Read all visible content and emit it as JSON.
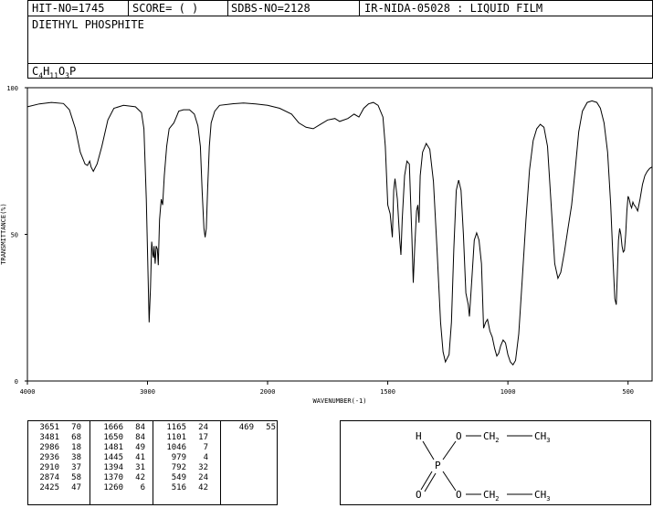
{
  "header": {
    "hit_no": "HIT-NO=1745",
    "score": "SCORE=  (  )",
    "sdbs_no": "SDBS-NO=2128",
    "method": "IR-NIDA-05028 : LIQUID FILM"
  },
  "compound": {
    "name": "DIETHYL PHOSPHITE",
    "formula_parts": [
      "C",
      "4",
      "H",
      "11",
      "O",
      "3",
      "P"
    ]
  },
  "chart_data": {
    "type": "line",
    "xlabel": "WAVENUMBER(-1)",
    "ylabel": "TRANSMITTANCE(%)",
    "xlim": [
      4000,
      400
    ],
    "ylim": [
      0,
      100
    ],
    "x_ticks": [
      "4000",
      "3000",
      "2000",
      "1500",
      "1000",
      "500"
    ],
    "y_ticks": [
      "100",
      "50",
      "0"
    ],
    "series": [
      {
        "points": [
          [
            4000,
            93.5
          ],
          [
            3900,
            94.5
          ],
          [
            3800,
            95.0
          ],
          [
            3700,
            94.6
          ],
          [
            3650,
            92.5
          ],
          [
            3600,
            86.0
          ],
          [
            3560,
            78.0
          ],
          [
            3520,
            74.0
          ],
          [
            3500,
            73.5
          ],
          [
            3481,
            75.0
          ],
          [
            3470,
            73.0
          ],
          [
            3451,
            71.5
          ],
          [
            3420,
            74.0
          ],
          [
            3380,
            80.0
          ],
          [
            3330,
            89.0
          ],
          [
            3280,
            93.0
          ],
          [
            3200,
            94.0
          ],
          [
            3100,
            93.5
          ],
          [
            3050,
            91.5
          ],
          [
            3030,
            86.0
          ],
          [
            3010,
            62.0
          ],
          [
            2995,
            35.0
          ],
          [
            2986,
            20.0
          ],
          [
            2975,
            32.0
          ],
          [
            2965,
            47.5
          ],
          [
            2955,
            43.0
          ],
          [
            2950,
            42.0
          ],
          [
            2945,
            46.0
          ],
          [
            2936,
            40.0
          ],
          [
            2928,
            46.0
          ],
          [
            2918,
            45.0
          ],
          [
            2910,
            39.5
          ],
          [
            2900,
            55.0
          ],
          [
            2890,
            60.0
          ],
          [
            2885,
            62.0
          ],
          [
            2874,
            60.0
          ],
          [
            2860,
            70.0
          ],
          [
            2840,
            80.0
          ],
          [
            2820,
            86.0
          ],
          [
            2780,
            88.0
          ],
          [
            2760,
            90.0
          ],
          [
            2740,
            92.0
          ],
          [
            2700,
            92.5
          ],
          [
            2650,
            92.5
          ],
          [
            2610,
            91.0
          ],
          [
            2580,
            87.0
          ],
          [
            2560,
            80.0
          ],
          [
            2545,
            65.0
          ],
          [
            2530,
            52.0
          ],
          [
            2520,
            49.0
          ],
          [
            2510,
            52.0
          ],
          [
            2500,
            65.0
          ],
          [
            2485,
            80.0
          ],
          [
            2470,
            88.0
          ],
          [
            2440,
            92.0
          ],
          [
            2400,
            94.0
          ],
          [
            2300,
            94.5
          ],
          [
            2200,
            94.8
          ],
          [
            2100,
            94.5
          ],
          [
            2000,
            94.0
          ],
          [
            1950,
            93.0
          ],
          [
            1900,
            91.0
          ],
          [
            1870,
            88.0
          ],
          [
            1840,
            86.5
          ],
          [
            1810,
            86.0
          ],
          [
            1780,
            87.5
          ],
          [
            1750,
            89.0
          ],
          [
            1720,
            89.5
          ],
          [
            1700,
            88.5
          ],
          [
            1666,
            89.5
          ],
          [
            1640,
            91.0
          ],
          [
            1620,
            90.0
          ],
          [
            1600,
            93.0
          ],
          [
            1580,
            94.5
          ],
          [
            1560,
            95.0
          ],
          [
            1540,
            94.0
          ],
          [
            1520,
            90.0
          ],
          [
            1510,
            80.0
          ],
          [
            1500,
            60.0
          ],
          [
            1490,
            57.0
          ],
          [
            1481,
            49.0
          ],
          [
            1475,
            65.0
          ],
          [
            1470,
            69.0
          ],
          [
            1460,
            62.0
          ],
          [
            1450,
            48.0
          ],
          [
            1445,
            43.0
          ],
          [
            1440,
            55.0
          ],
          [
            1430,
            70.0
          ],
          [
            1420,
            75.0
          ],
          [
            1410,
            74.0
          ],
          [
            1400,
            50.0
          ],
          [
            1394,
            33.5
          ],
          [
            1388,
            45.0
          ],
          [
            1380,
            58.0
          ],
          [
            1375,
            60.0
          ],
          [
            1370,
            54.0
          ],
          [
            1365,
            70.0
          ],
          [
            1355,
            78.0
          ],
          [
            1340,
            81.0
          ],
          [
            1325,
            79.0
          ],
          [
            1310,
            68.0
          ],
          [
            1295,
            45.0
          ],
          [
            1280,
            20.0
          ],
          [
            1270,
            10.0
          ],
          [
            1260,
            6.5
          ],
          [
            1245,
            9.0
          ],
          [
            1235,
            20.0
          ],
          [
            1225,
            45.0
          ],
          [
            1215,
            65.0
          ],
          [
            1205,
            68.5
          ],
          [
            1195,
            65.0
          ],
          [
            1185,
            50.0
          ],
          [
            1175,
            30.0
          ],
          [
            1165,
            26.0
          ],
          [
            1160,
            22.0
          ],
          [
            1150,
            35.0
          ],
          [
            1140,
            48.0
          ],
          [
            1130,
            50.5
          ],
          [
            1120,
            48.0
          ],
          [
            1110,
            40.0
          ],
          [
            1101,
            18.0
          ],
          [
            1093,
            20.0
          ],
          [
            1085,
            21.0
          ],
          [
            1075,
            17.0
          ],
          [
            1065,
            15.0
          ],
          [
            1055,
            11.0
          ],
          [
            1046,
            8.5
          ],
          [
            1038,
            9.5
          ],
          [
            1030,
            12.0
          ],
          [
            1020,
            14.0
          ],
          [
            1010,
            13.0
          ],
          [
            1000,
            9.0
          ],
          [
            990,
            6.5
          ],
          [
            979,
            5.5
          ],
          [
            968,
            7.0
          ],
          [
            955,
            16.0
          ],
          [
            940,
            35.0
          ],
          [
            925,
            55.0
          ],
          [
            910,
            72.0
          ],
          [
            895,
            82.0
          ],
          [
            880,
            86.0
          ],
          [
            865,
            87.5
          ],
          [
            850,
            86.5
          ],
          [
            835,
            80.0
          ],
          [
            820,
            60.0
          ],
          [
            805,
            40.0
          ],
          [
            792,
            35.0
          ],
          [
            780,
            37.0
          ],
          [
            765,
            44.0
          ],
          [
            750,
            52.0
          ],
          [
            735,
            60.0
          ],
          [
            720,
            72.0
          ],
          [
            705,
            85.0
          ],
          [
            690,
            92.0
          ],
          [
            670,
            95.0
          ],
          [
            650,
            95.5
          ],
          [
            630,
            95.0
          ],
          [
            615,
            93.0
          ],
          [
            600,
            88.0
          ],
          [
            585,
            78.0
          ],
          [
            572,
            60.0
          ],
          [
            562,
            40.0
          ],
          [
            555,
            28.0
          ],
          [
            549,
            26.0
          ],
          [
            545,
            35.0
          ],
          [
            540,
            48.0
          ],
          [
            535,
            52.0
          ],
          [
            530,
            50.0
          ],
          [
            525,
            46.0
          ],
          [
            520,
            44.0
          ],
          [
            515,
            44.5
          ],
          [
            510,
            50.0
          ],
          [
            505,
            58.0
          ],
          [
            500,
            63.0
          ],
          [
            495,
            62.0
          ],
          [
            490,
            60.0
          ],
          [
            485,
            59.0
          ],
          [
            480,
            61.0
          ],
          [
            475,
            60.0
          ],
          [
            469,
            59.5
          ],
          [
            460,
            58.0
          ],
          [
            450,
            62.0
          ],
          [
            440,
            67.0
          ],
          [
            430,
            70.0
          ],
          [
            420,
            71.5
          ],
          [
            410,
            72.5
          ],
          [
            400,
            73.0
          ]
        ]
      }
    ]
  },
  "peaks": {
    "col1": [
      [
        "3651",
        "70"
      ],
      [
        "3481",
        "68"
      ],
      [
        "2986",
        "18"
      ],
      [
        "2936",
        "38"
      ],
      [
        "2910",
        "37"
      ],
      [
        "2874",
        "58"
      ],
      [
        "2425",
        "47"
      ]
    ],
    "col2": [
      [
        "1666",
        "84"
      ],
      [
        "1650",
        "84"
      ],
      [
        "1481",
        "49"
      ],
      [
        "1445",
        "41"
      ],
      [
        "1394",
        "31"
      ],
      [
        "1370",
        "42"
      ],
      [
        "1260",
        "6"
      ]
    ],
    "col3": [
      [
        "1165",
        "24"
      ],
      [
        "1101",
        "17"
      ],
      [
        "1046",
        "7"
      ],
      [
        "979",
        "4"
      ],
      [
        "792",
        "32"
      ],
      [
        "549",
        "24"
      ],
      [
        "516",
        "42"
      ]
    ],
    "col4": [
      [
        "469",
        "55"
      ]
    ]
  },
  "structure": {
    "h": "H",
    "p": "P",
    "o_double": "O",
    "o_top": "O",
    "o_bottom": "O",
    "ch2_top": "CH2",
    "ch3_top": "CH3",
    "ch2_bottom": "CH2",
    "ch3_bottom": "CH3"
  }
}
